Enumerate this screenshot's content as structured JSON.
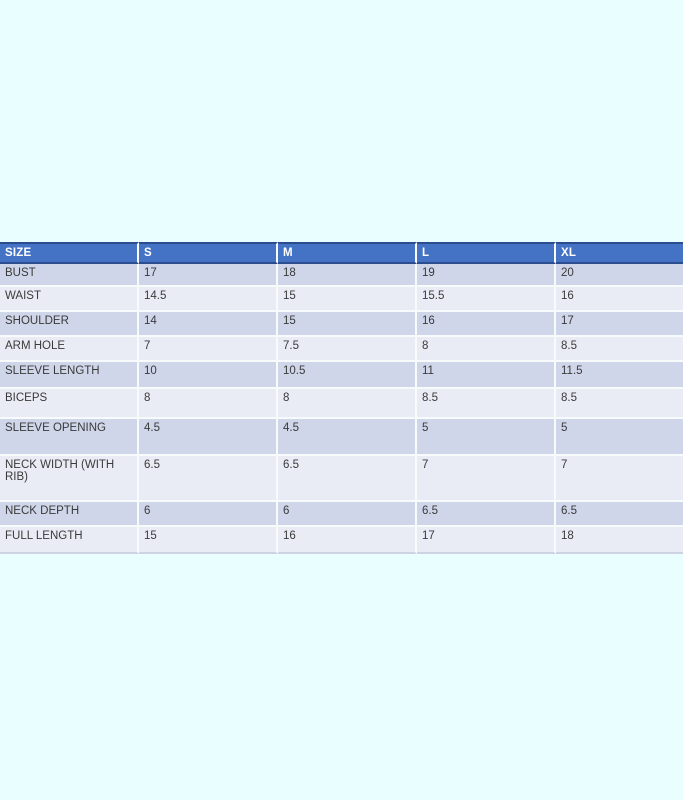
{
  "page": {
    "background_color": "#e9feff"
  },
  "size_chart": {
    "columns": [
      "SIZE",
      "S",
      "M",
      "L",
      "XL"
    ],
    "rows": [
      {
        "label": "BUST",
        "values": [
          "17",
          "18",
          "19",
          "20"
        ]
      },
      {
        "label": "WAIST",
        "values": [
          "14.5",
          "15",
          "15.5",
          "16"
        ]
      },
      {
        "label": "SHOULDER",
        "values": [
          "14",
          "15",
          "16",
          "17"
        ]
      },
      {
        "label": "ARM HOLE",
        "values": [
          "7",
          "7.5",
          "8",
          "8.5"
        ]
      },
      {
        "label": "SLEEVE LENGTH",
        "values": [
          "10",
          "10.5",
          "11",
          "11.5"
        ]
      },
      {
        "label": "BICEPS",
        "values": [
          "8",
          "8",
          "8.5",
          "8.5"
        ]
      },
      {
        "label": "SLEEVE OPENING",
        "values": [
          "4.5",
          "4.5",
          "5",
          "5"
        ]
      },
      {
        "label": "NECK WIDTH (WITH RIB)",
        "values": [
          "6.5",
          "6.5",
          "7",
          "7"
        ]
      },
      {
        "label": "NECK DEPTH",
        "values": [
          "6",
          "6",
          "6.5",
          "6.5"
        ]
      },
      {
        "label": "FULL LENGTH",
        "values": [
          "15",
          "16",
          "17",
          "18"
        ]
      }
    ],
    "colors": {
      "header_bg": "#4472c4",
      "header_text": "#ffffff",
      "header_border": "#2b4d8e",
      "band_dark": "#d0d6e9",
      "band_light": "#eaecf5",
      "cell_text": "#3a3a3a"
    }
  }
}
